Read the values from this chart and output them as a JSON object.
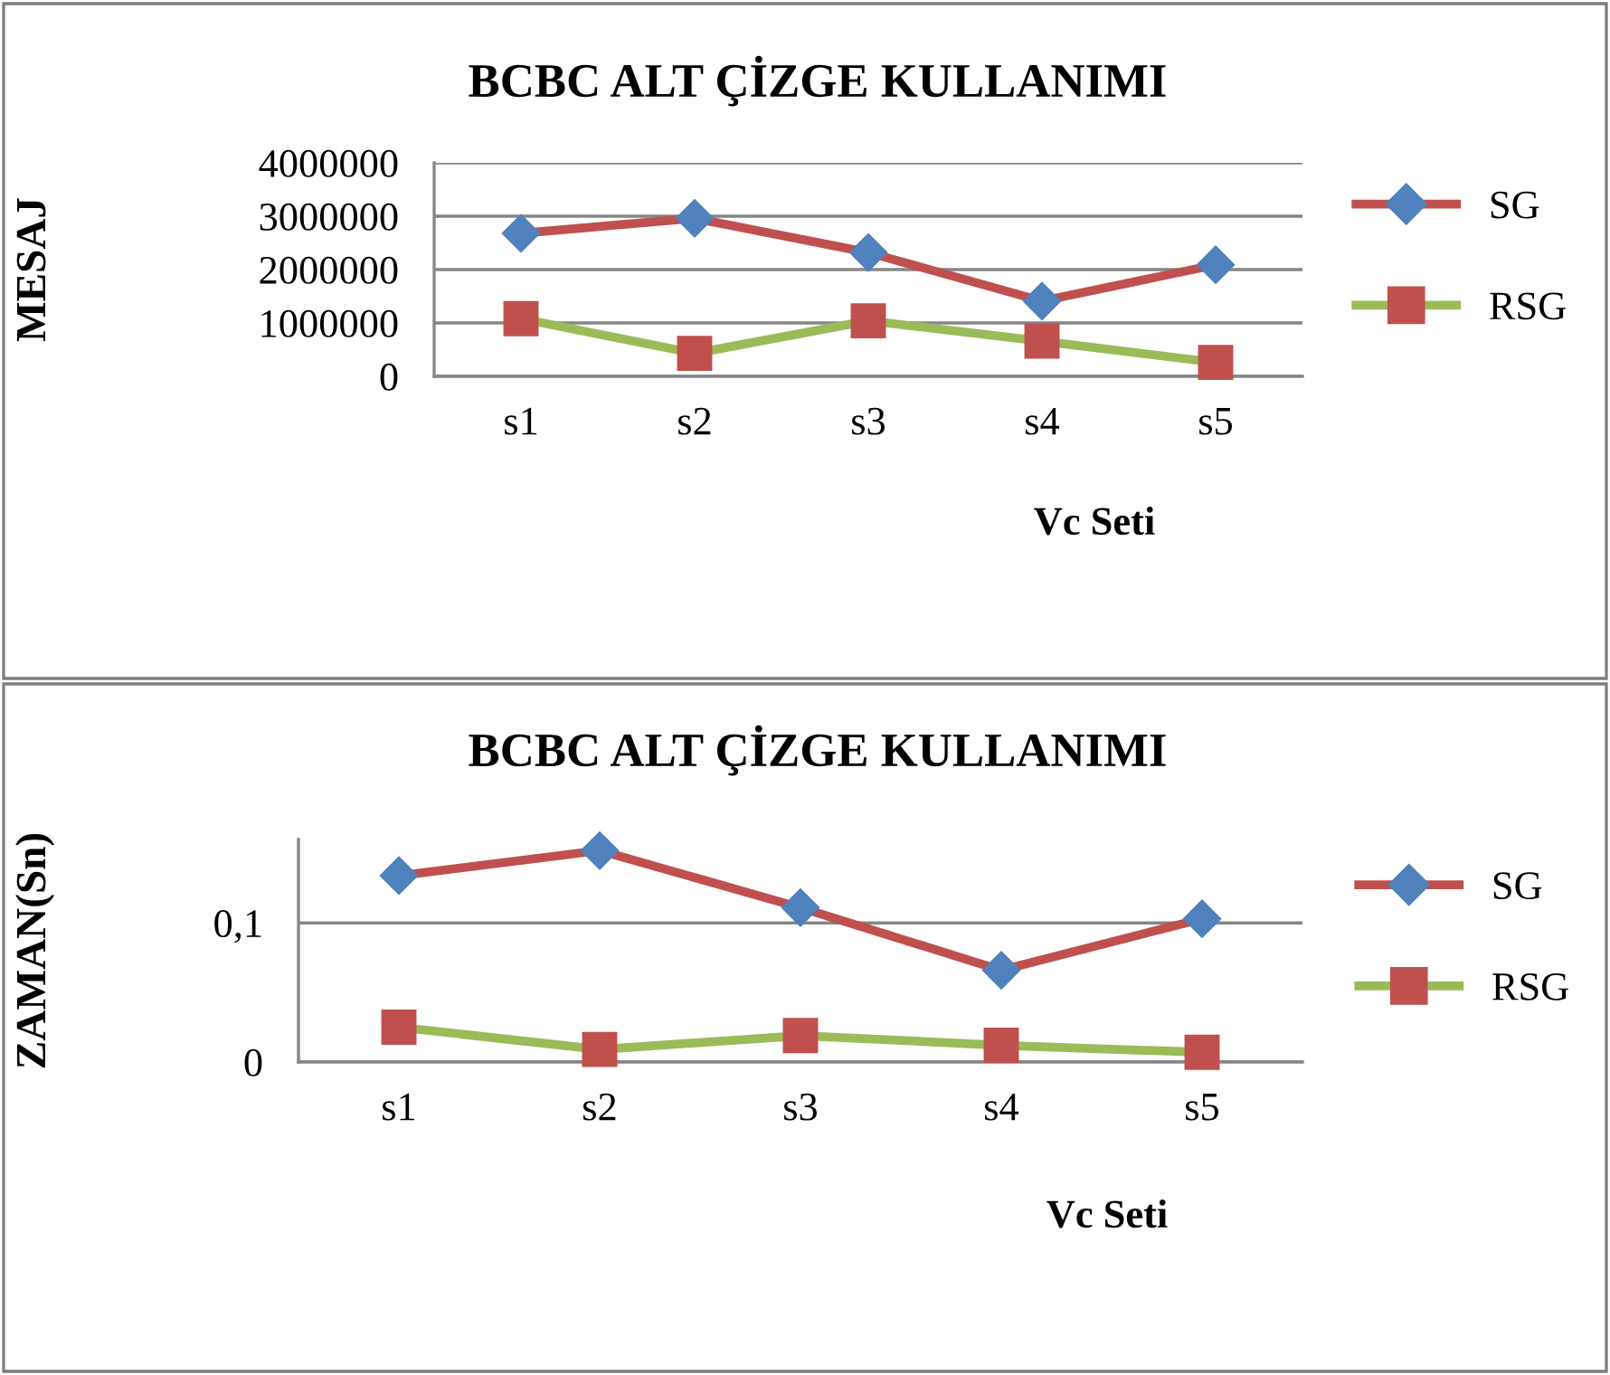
{
  "chart_data": [
    {
      "type": "line",
      "title": "BCBC ALT ÇİZGE KULLANIMI",
      "xlabel": "Vc Seti",
      "ylabel": "MESAJ",
      "categories": [
        "s1",
        "s2",
        "s3",
        "s4",
        "s5"
      ],
      "series": [
        {
          "name": "SG",
          "color": "#c0504d",
          "colors": [
            "#4f81bd",
            "#4f81bd",
            "#4f81bd",
            "#4f81bd",
            "#4f81bd"
          ],
          "marker": "diamond",
          "values": [
            2680000,
            2960000,
            2320000,
            1410000,
            2090000
          ]
        },
        {
          "name": "RSG",
          "color": "#9bbb59",
          "colors": [
            "#c0504d",
            "#c0504d",
            "#c0504d",
            "#c0504d",
            "#c0504d"
          ],
          "marker": "square",
          "values": [
            1080000,
            430000,
            1040000,
            660000,
            260000
          ]
        }
      ],
      "ylim": [
        0,
        4000000
      ],
      "yticks": [
        0,
        1000000,
        2000000,
        3000000,
        4000000
      ],
      "grid": "y",
      "legend": "right"
    },
    {
      "type": "line",
      "title": "BCBC ALT ÇİZGE KULLANIMI",
      "xlabel": "Vc Seti",
      "ylabel": "ZAMAN(Sn)",
      "categories": [
        "s1",
        "s2",
        "s3",
        "s4",
        "s5"
      ],
      "series": [
        {
          "name": "SG",
          "color": "#c0504d",
          "colors": [
            "#4f81bd",
            "#4f81bd",
            "#4f81bd",
            "#4f81bd",
            "#4f81bd"
          ],
          "marker": "diamond",
          "values": [
            0.134,
            0.152,
            0.111,
            0.066,
            0.103
          ]
        },
        {
          "name": "RSG",
          "color": "#9bbb59",
          "colors": [
            "#c0504d",
            "#c0504d",
            "#c0504d",
            "#c0504d",
            "#c0504d"
          ],
          "marker": "square",
          "values": [
            0.025,
            0.009,
            0.019,
            0.012,
            0.007
          ]
        }
      ],
      "ylim": [
        0,
        0.16
      ],
      "yticks": [
        0,
        {
          "value": 0.1,
          "label": "0,1"
        }
      ],
      "grid": "y",
      "legend": "right"
    }
  ]
}
